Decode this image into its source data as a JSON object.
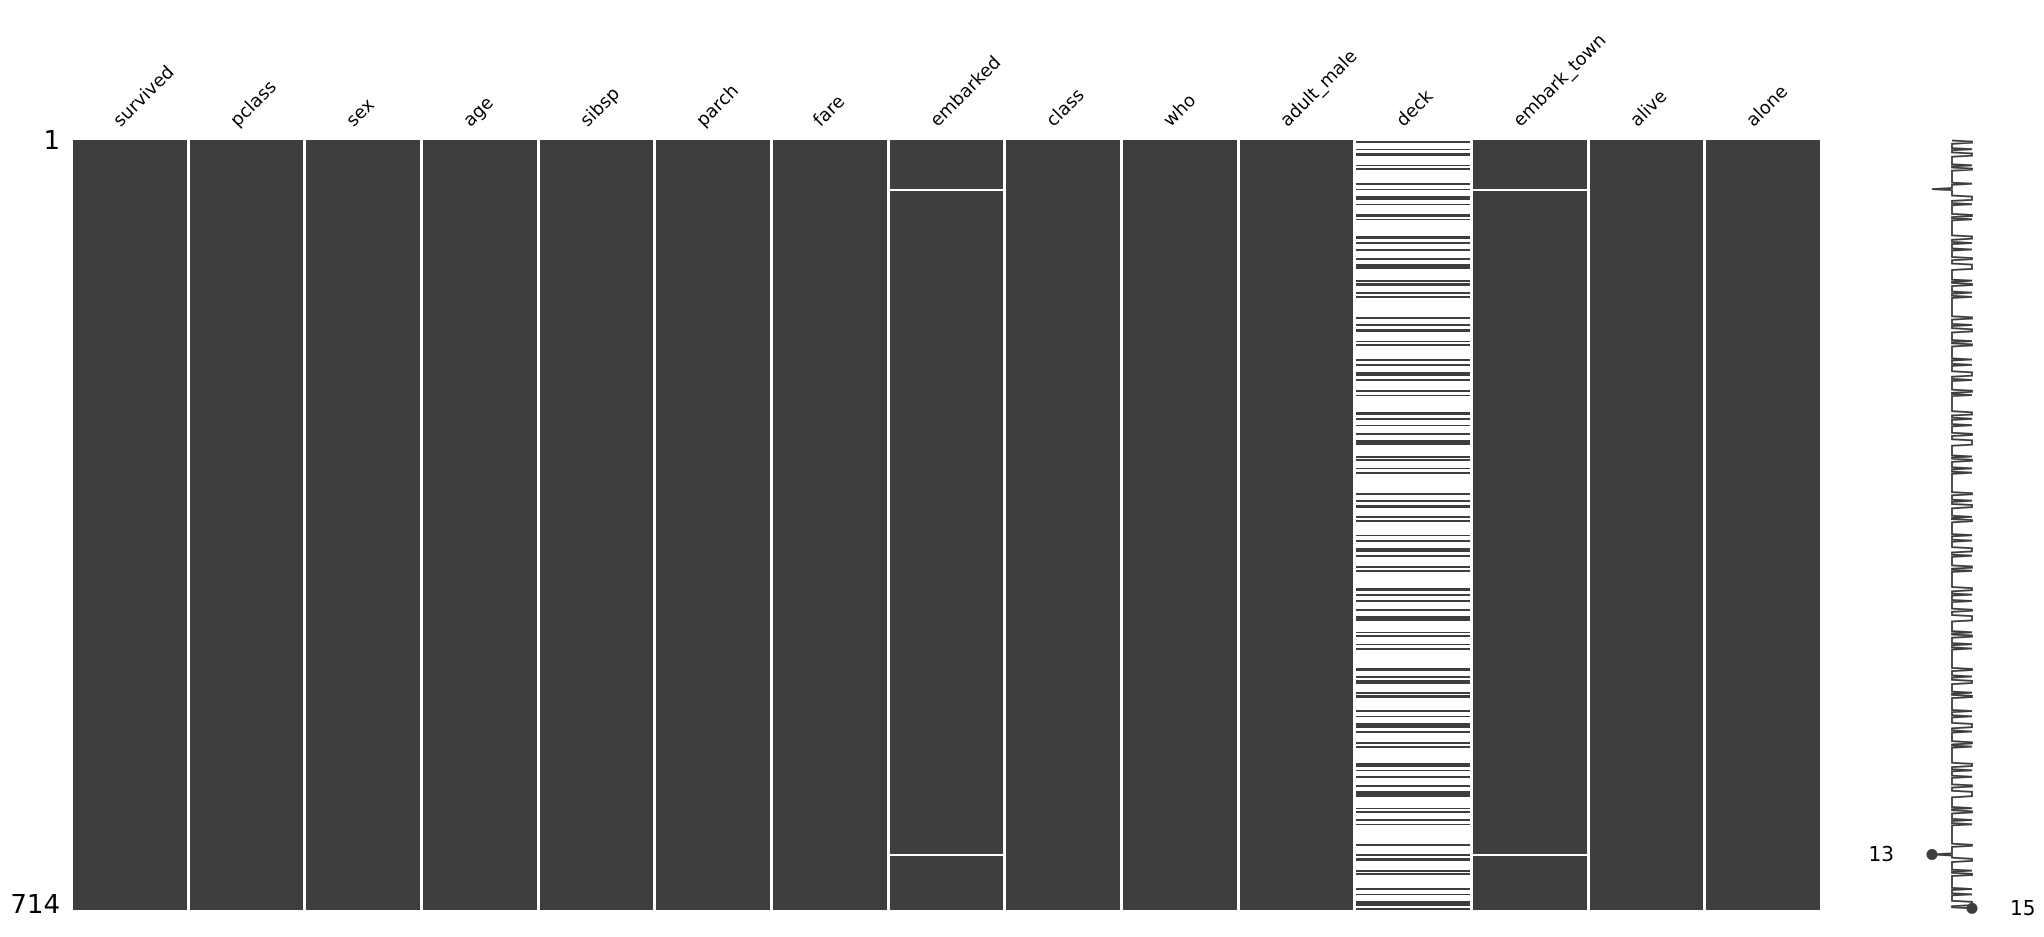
{
  "figure": {
    "bg_color": "#ffffff",
    "ink_color": "#3E3E3E",
    "text_color": "#000000"
  },
  "axes": {
    "row_first_label": "1",
    "row_last_label": "714"
  },
  "sparkline_labels": {
    "min": "13",
    "max": "15"
  },
  "chart_data": {
    "type": "heatmap",
    "subtype": "missing-data-nullity-matrix",
    "title": "",
    "n_rows": 714,
    "n_cols": 15,
    "columns": [
      "survived",
      "pclass",
      "sex",
      "age",
      "sibsp",
      "parch",
      "fare",
      "embarked",
      "class",
      "who",
      "adult_male",
      "deck",
      "embark_town",
      "alive",
      "alone"
    ],
    "fully_observed_columns": [
      "survived",
      "pclass",
      "sex",
      "age",
      "sibsp",
      "parch",
      "fare",
      "class",
      "who",
      "adult_male",
      "alive",
      "alone"
    ],
    "row_axis_ticks": [
      "1",
      "714"
    ],
    "filled_means": "value present",
    "white_means": "value missing",
    "embarked_missing_rows": [
      46,
      663
    ],
    "embark_town_missing_rows": [
      46,
      663
    ],
    "deck_mostly_missing": true,
    "deck_present_segments": [
      [
        2,
        2
      ],
      [
        9,
        1
      ],
      [
        13,
        3
      ],
      [
        24,
        1
      ],
      [
        27,
        2
      ],
      [
        41,
        1
      ],
      [
        46,
        1
      ],
      [
        53,
        4
      ],
      [
        60,
        1
      ],
      [
        70,
        2
      ],
      [
        74,
        1
      ],
      [
        90,
        3
      ],
      [
        96,
        1
      ],
      [
        102,
        1
      ],
      [
        110,
        2
      ],
      [
        116,
        5
      ],
      [
        131,
        1
      ],
      [
        134,
        2
      ],
      [
        142,
        1
      ],
      [
        146,
        1
      ],
      [
        165,
        2
      ],
      [
        172,
        1
      ],
      [
        176,
        3
      ],
      [
        187,
        1
      ],
      [
        190,
        2
      ],
      [
        204,
        1
      ],
      [
        209,
        1
      ],
      [
        216,
        4
      ],
      [
        223,
        1
      ],
      [
        233,
        2
      ],
      [
        237,
        1
      ],
      [
        253,
        3
      ],
      [
        259,
        1
      ],
      [
        265,
        1
      ],
      [
        273,
        2
      ],
      [
        279,
        5
      ],
      [
        294,
        1
      ],
      [
        297,
        2
      ],
      [
        305,
        1
      ],
      [
        309,
        1
      ],
      [
        328,
        2
      ],
      [
        335,
        1
      ],
      [
        339,
        3
      ],
      [
        350,
        1
      ],
      [
        353,
        2
      ],
      [
        367,
        1
      ],
      [
        372,
        1
      ],
      [
        379,
        4
      ],
      [
        386,
        1
      ],
      [
        396,
        2
      ],
      [
        400,
        1
      ],
      [
        416,
        3
      ],
      [
        422,
        1
      ],
      [
        428,
        1
      ],
      [
        436,
        2
      ],
      [
        442,
        5
      ],
      [
        457,
        1
      ],
      [
        460,
        2
      ],
      [
        468,
        1
      ],
      [
        472,
        1
      ],
      [
        491,
        2
      ],
      [
        498,
        1
      ],
      [
        502,
        3
      ],
      [
        513,
        1
      ],
      [
        516,
        2
      ],
      [
        530,
        1
      ],
      [
        535,
        1
      ],
      [
        542,
        4
      ],
      [
        549,
        1
      ],
      [
        559,
        2
      ],
      [
        563,
        1
      ],
      [
        579,
        3
      ],
      [
        585,
        1
      ],
      [
        591,
        1
      ],
      [
        599,
        2
      ],
      [
        605,
        5
      ],
      [
        620,
        1
      ],
      [
        623,
        2
      ],
      [
        631,
        1
      ],
      [
        635,
        1
      ],
      [
        654,
        2
      ],
      [
        663,
        1
      ],
      [
        667,
        3
      ],
      [
        678,
        1
      ],
      [
        681,
        2
      ],
      [
        695,
        1
      ],
      [
        700,
        1
      ],
      [
        707,
        4
      ],
      [
        713,
        2
      ]
    ],
    "completeness_sparkline": {
      "min": 13,
      "max": 15,
      "baseline": 14,
      "min_value_row": 663,
      "max_value_row": 713,
      "rule": "completeness = 14 + (deck present ? 1 : 0) - (embarked missing ? 2 : 0)"
    },
    "legend_position": "none",
    "grid": false
  }
}
